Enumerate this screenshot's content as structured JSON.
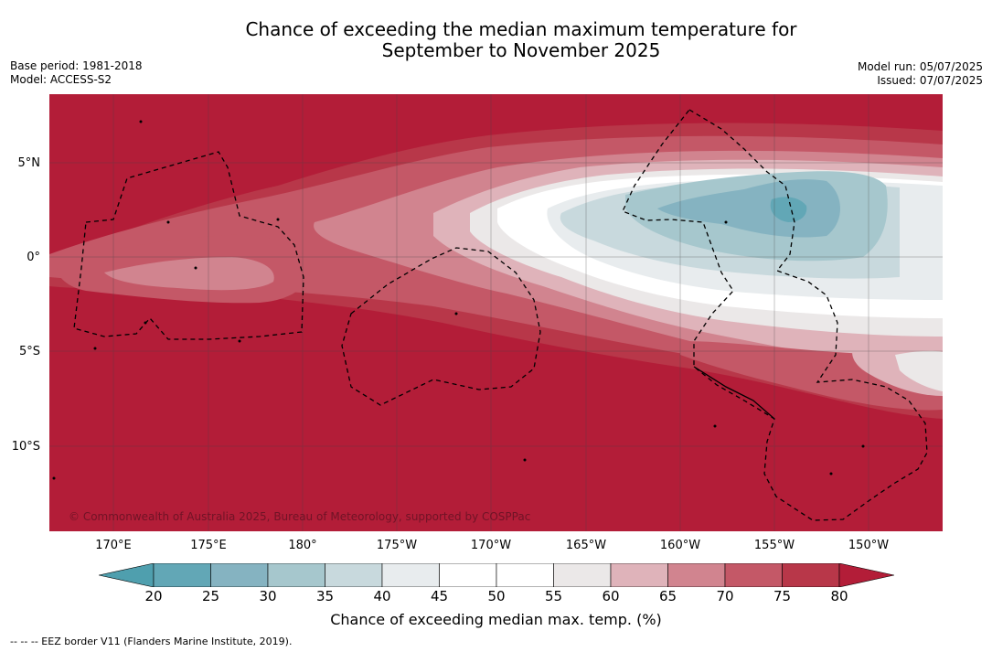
{
  "header": {
    "title_line1": "Chance of exceeding the median maximum temperature for",
    "title_line2": "September to November 2025",
    "base_period": "Base period: 1981-2018",
    "model": "Model: ACCESS-S2",
    "model_run": "Model run: 05/07/2025",
    "issued": "Issued: 07/07/2025"
  },
  "map": {
    "lat_labels": [
      "5°N",
      "0°",
      "5°S",
      "10°S"
    ],
    "lon_labels": [
      "170°E",
      "175°E",
      "180°",
      "175°W",
      "170°W",
      "165°W",
      "160°W",
      "155°W",
      "150°W"
    ],
    "copyright": "© Commonwealth of Australia 2025, Bureau of Meteorology, supported by COSPPac"
  },
  "legend": {
    "ticks": [
      "20",
      "25",
      "30",
      "35",
      "40",
      "45",
      "50",
      "55",
      "60",
      "65",
      "70",
      "75",
      "80"
    ],
    "colors": [
      "#62a7b6",
      "#85b3c1",
      "#a6c7cd",
      "#c8d9dd",
      "#e8ecee",
      "#ffffff",
      "#ffffff",
      "#ebe8e8",
      "#dfb3ba",
      "#d1848f",
      "#c45867",
      "#b83749"
    ],
    "under_color": "#4f9fae",
    "over_color": "#b31d38",
    "label": "Chance of exceeding median max. temp. (%)"
  },
  "footer": {
    "eez": "-- -- -- EEZ border V11 (Flanders Marine Institute, 2019)."
  }
}
